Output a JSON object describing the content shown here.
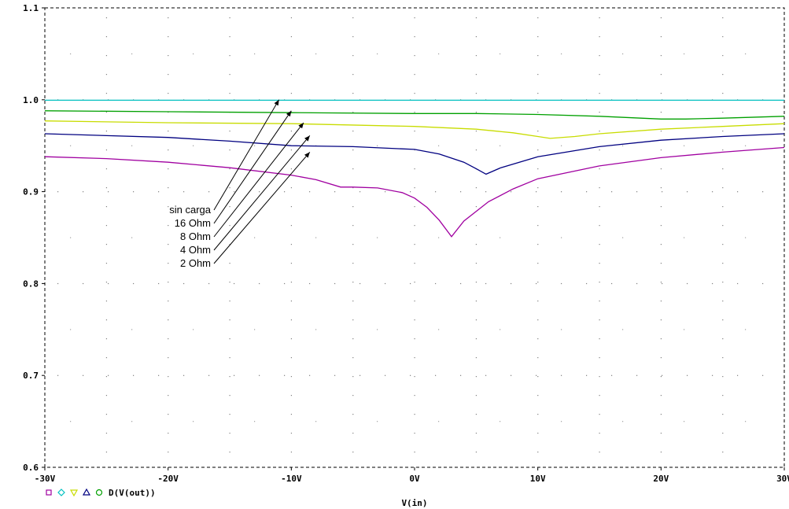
{
  "chart_data": {
    "type": "line",
    "xlabel": "V(in)",
    "ylabel": "",
    "xlim": [
      -30,
      30
    ],
    "ylim": [
      0.6,
      1.1
    ],
    "grid": true,
    "x_ticks": [
      {
        "value": -30,
        "label": "-30V"
      },
      {
        "value": -20,
        "label": "-20V"
      },
      {
        "value": -10,
        "label": "-10V"
      },
      {
        "value": 0,
        "label": "0V"
      },
      {
        "value": 10,
        "label": "10V"
      },
      {
        "value": 20,
        "label": "20V"
      },
      {
        "value": 30,
        "label": "30V"
      }
    ],
    "y_ticks": [
      {
        "value": 0.6,
        "label": "0.6"
      },
      {
        "value": 0.7,
        "label": "0.7"
      },
      {
        "value": 0.8,
        "label": "0.8"
      },
      {
        "value": 0.9,
        "label": "0.9"
      },
      {
        "value": 1.0,
        "label": "1.0"
      },
      {
        "value": 1.1,
        "label": "1.1"
      }
    ],
    "legend": {
      "placement": "bottom-left",
      "label": "D(V(out))",
      "markers": [
        {
          "shape": "square",
          "color": "#a000a0"
        },
        {
          "shape": "diamond",
          "color": "#00c0c0"
        },
        {
          "shape": "triangle-down",
          "color": "#c8dc00"
        },
        {
          "shape": "triangle-up",
          "color": "#000080"
        },
        {
          "shape": "circle",
          "color": "#00a000"
        }
      ]
    },
    "series": [
      {
        "color": "#a000a0",
        "x": [
          -30,
          -25,
          -20,
          -15,
          -10,
          -8,
          -6,
          -5,
          -3,
          -1,
          0,
          1,
          2,
          3,
          4,
          6,
          8,
          10,
          15,
          20,
          25,
          30
        ],
        "y": [
          0.938,
          0.936,
          0.932,
          0.926,
          0.918,
          0.913,
          0.905,
          0.905,
          0.904,
          0.899,
          0.893,
          0.883,
          0.869,
          0.851,
          0.868,
          0.889,
          0.903,
          0.914,
          0.928,
          0.937,
          0.943,
          0.948
        ]
      },
      {
        "color": "#00c0c0",
        "x": [
          -30,
          30
        ],
        "y": [
          0.9995,
          0.9995
        ]
      },
      {
        "color": "#c8dc00",
        "x": [
          -30,
          -20,
          -10,
          0,
          5,
          8,
          10,
          11,
          13,
          15,
          20,
          25,
          30
        ],
        "y": [
          0.977,
          0.975,
          0.974,
          0.971,
          0.968,
          0.964,
          0.96,
          0.958,
          0.96,
          0.963,
          0.968,
          0.971,
          0.974
        ]
      },
      {
        "color": "#000080",
        "x": [
          -30,
          -20,
          -15,
          -10,
          -5,
          0,
          2,
          4,
          5,
          5.8,
          7,
          10,
          15,
          20,
          25,
          30
        ],
        "y": [
          0.963,
          0.959,
          0.955,
          0.95,
          0.949,
          0.946,
          0.941,
          0.932,
          0.925,
          0.919,
          0.926,
          0.938,
          0.949,
          0.956,
          0.96,
          0.963
        ]
      },
      {
        "color": "#00a000",
        "x": [
          -30,
          -20,
          -10,
          0,
          5,
          10,
          15,
          20,
          22,
          25,
          30
        ],
        "y": [
          0.988,
          0.987,
          0.986,
          0.985,
          0.985,
          0.984,
          0.982,
          0.979,
          0.979,
          0.98,
          0.982
        ]
      }
    ],
    "annotations": [
      {
        "text": "sin carga",
        "arrow_to": {
          "x": -11,
          "y": 1.0
        }
      },
      {
        "text": "16 Ohm",
        "arrow_to": {
          "x": -10,
          "y": 0.988
        }
      },
      {
        "text": "8 Ohm",
        "arrow_to": {
          "x": -9,
          "y": 0.975
        }
      },
      {
        "text": "4 Ohm",
        "arrow_to": {
          "x": -8.5,
          "y": 0.961
        }
      },
      {
        "text": "2 Ohm",
        "arrow_to": {
          "x": -8.5,
          "y": 0.943
        }
      }
    ]
  }
}
